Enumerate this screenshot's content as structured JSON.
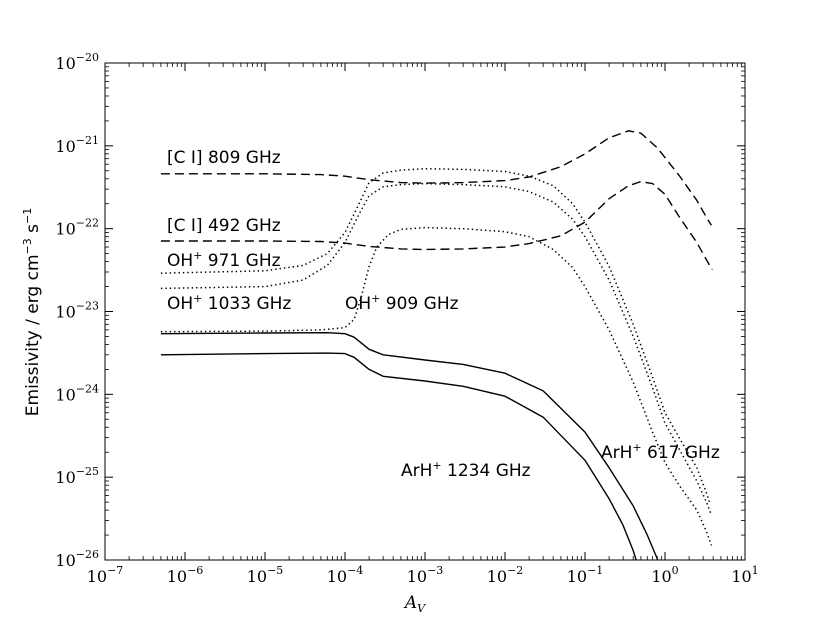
{
  "chart_data": {
    "type": "line",
    "title": "",
    "xlabel": "A",
    "xlabel_sub": "V",
    "ylabel": "Emissivity / erg cm",
    "ylabel_exp1": "−3",
    "ylabel_mid": " s",
    "ylabel_exp2": "−1",
    "xscale": "log",
    "yscale": "log",
    "xlim": [
      1e-07,
      10
    ],
    "ylim": [
      1e-26,
      1e-20
    ],
    "x_ticks": [
      {
        "base": "10",
        "exp": "−7",
        "value": 1e-07
      },
      {
        "base": "10",
        "exp": "−6",
        "value": 1e-06
      },
      {
        "base": "10",
        "exp": "−5",
        "value": 1e-05
      },
      {
        "base": "10",
        "exp": "−4",
        "value": 0.0001
      },
      {
        "base": "10",
        "exp": "−3",
        "value": 0.001
      },
      {
        "base": "10",
        "exp": "−2",
        "value": 0.01
      },
      {
        "base": "10",
        "exp": "−1",
        "value": 0.1
      },
      {
        "base": "10",
        "exp": "0",
        "value": 1
      },
      {
        "base": "10",
        "exp": "1",
        "value": 10
      }
    ],
    "y_ticks": [
      {
        "base": "10",
        "exp": "−26",
        "value": 1e-26
      },
      {
        "base": "10",
        "exp": "−25",
        "value": 1e-25
      },
      {
        "base": "10",
        "exp": "−24",
        "value": 1e-24
      },
      {
        "base": "10",
        "exp": "−23",
        "value": 1e-23
      },
      {
        "base": "10",
        "exp": "−22",
        "value": 1e-22
      },
      {
        "base": "10",
        "exp": "−21",
        "value": 1e-21
      },
      {
        "base": "10",
        "exp": "−20",
        "value": 1e-20
      }
    ],
    "series": [
      {
        "name": "CI 809 GHz",
        "style": "dashed",
        "points": [
          [
            5e-07,
            4.6e-22
          ],
          [
            1e-05,
            4.6e-22
          ],
          [
            5e-05,
            4.5e-22
          ],
          [
            0.0001,
            4.3e-22
          ],
          [
            0.0002,
            3.9e-22
          ],
          [
            0.0005,
            3.6e-22
          ],
          [
            0.001,
            3.55e-22
          ],
          [
            0.003,
            3.6e-22
          ],
          [
            0.01,
            3.8e-22
          ],
          [
            0.02,
            4.2e-22
          ],
          [
            0.05,
            5.6e-22
          ],
          [
            0.1,
            8e-22
          ],
          [
            0.2,
            1.25e-21
          ],
          [
            0.35,
            1.52e-21
          ],
          [
            0.5,
            1.42e-21
          ],
          [
            0.8,
            9.5e-22
          ],
          [
            1.5,
            4.4e-22
          ],
          [
            2.5,
            2.2e-22
          ],
          [
            3.4,
            1.3e-22
          ],
          [
            3.8,
            1.1e-22
          ]
        ]
      },
      {
        "name": "CI 492 GHz",
        "style": "dashed",
        "points": [
          [
            5e-07,
            7.1e-23
          ],
          [
            1e-05,
            7.1e-23
          ],
          [
            5e-05,
            7e-23
          ],
          [
            0.0001,
            6.7e-23
          ],
          [
            0.0002,
            6.1e-23
          ],
          [
            0.0005,
            5.7e-23
          ],
          [
            0.001,
            5.6e-23
          ],
          [
            0.003,
            5.7e-23
          ],
          [
            0.01,
            6e-23
          ],
          [
            0.02,
            6.6e-23
          ],
          [
            0.05,
            8.2e-23
          ],
          [
            0.1,
            1.2e-22
          ],
          [
            0.2,
            2.3e-22
          ],
          [
            0.35,
            3.3e-22
          ],
          [
            0.5,
            3.7e-22
          ],
          [
            0.7,
            3.5e-22
          ],
          [
            1.0,
            2.6e-22
          ],
          [
            1.5,
            1.4e-22
          ],
          [
            2.5,
            6.8e-23
          ],
          [
            3.4,
            4e-23
          ],
          [
            3.9,
            3.2e-23
          ]
        ]
      },
      {
        "name": "OH+ 971 GHz",
        "style": "dotted",
        "points": [
          [
            5e-07,
            2.9e-23
          ],
          [
            1e-05,
            3.1e-23
          ],
          [
            3e-05,
            3.6e-23
          ],
          [
            6e-05,
            5e-23
          ],
          [
            0.0001,
            9e-23
          ],
          [
            0.00015,
            2e-22
          ],
          [
            0.0002,
            3.6e-22
          ],
          [
            0.0003,
            4.7e-22
          ],
          [
            0.0005,
            5.1e-22
          ],
          [
            0.001,
            5.3e-22
          ],
          [
            0.003,
            5.2e-22
          ],
          [
            0.01,
            4.9e-22
          ],
          [
            0.02,
            4.3e-22
          ],
          [
            0.04,
            3.3e-22
          ],
          [
            0.07,
            2e-22
          ],
          [
            0.1,
            1.2e-22
          ],
          [
            0.2,
            3.5e-23
          ],
          [
            0.4,
            7e-24
          ],
          [
            0.7,
            1.6e-24
          ],
          [
            1.0,
            6e-25
          ],
          [
            1.5,
            3e-25
          ],
          [
            2.5,
            1.3e-25
          ],
          [
            3.2,
            7e-26
          ],
          [
            3.6,
            5e-26
          ]
        ]
      },
      {
        "name": "OH+ 1033 GHz",
        "style": "dotted",
        "points": [
          [
            5e-07,
            1.9e-23
          ],
          [
            1e-05,
            2e-23
          ],
          [
            3e-05,
            2.4e-23
          ],
          [
            6e-05,
            3.6e-23
          ],
          [
            0.0001,
            6.8e-23
          ],
          [
            0.00015,
            1.5e-22
          ],
          [
            0.0002,
            2.5e-22
          ],
          [
            0.0003,
            3.2e-22
          ],
          [
            0.0005,
            3.4e-22
          ],
          [
            0.001,
            3.5e-22
          ],
          [
            0.003,
            3.4e-22
          ],
          [
            0.01,
            3.2e-22
          ],
          [
            0.02,
            2.8e-22
          ],
          [
            0.04,
            2.1e-22
          ],
          [
            0.07,
            1.3e-22
          ],
          [
            0.1,
            8e-23
          ],
          [
            0.2,
            2.4e-23
          ],
          [
            0.4,
            5e-24
          ],
          [
            0.7,
            1.2e-24
          ],
          [
            1.0,
            4.5e-25
          ],
          [
            1.5,
            2.2e-25
          ],
          [
            2.5,
            9e-26
          ],
          [
            3.3,
            5e-26
          ],
          [
            3.8,
            3.5e-26
          ]
        ]
      },
      {
        "name": "OH+ 909 GHz",
        "style": "dotted",
        "points": [
          [
            5e-07,
            5.7e-24
          ],
          [
            1e-05,
            5.8e-24
          ],
          [
            5e-05,
            6e-24
          ],
          [
            0.0001,
            6.4e-24
          ],
          [
            0.00013,
            8e-24
          ],
          [
            0.00016,
            1.5e-23
          ],
          [
            0.0002,
            3.5e-23
          ],
          [
            0.00025,
            6e-23
          ],
          [
            0.00035,
            8.5e-23
          ],
          [
            0.0005,
            9.8e-23
          ],
          [
            0.001,
            1.03e-22
          ],
          [
            0.003,
            1e-22
          ],
          [
            0.01,
            9.2e-23
          ],
          [
            0.02,
            8e-23
          ],
          [
            0.04,
            5.6e-23
          ],
          [
            0.07,
            3.4e-23
          ],
          [
            0.1,
            2e-23
          ],
          [
            0.2,
            6e-24
          ],
          [
            0.4,
            1.4e-24
          ],
          [
            0.7,
            3.5e-25
          ],
          [
            1.0,
            1.5e-25
          ],
          [
            1.5,
            8e-26
          ],
          [
            2.5,
            4e-26
          ],
          [
            3.3,
            2.2e-26
          ],
          [
            3.8,
            1.5e-26
          ]
        ]
      },
      {
        "name": "ArH+ 617 GHz",
        "style": "solid",
        "points": [
          [
            5e-07,
            5.4e-24
          ],
          [
            1e-05,
            5.5e-24
          ],
          [
            6e-05,
            5.55e-24
          ],
          [
            0.0001,
            5.4e-24
          ],
          [
            0.00013,
            4.9e-24
          ],
          [
            0.0002,
            3.5e-24
          ],
          [
            0.0003,
            3e-24
          ],
          [
            0.001,
            2.6e-24
          ],
          [
            0.003,
            2.3e-24
          ],
          [
            0.01,
            1.8e-24
          ],
          [
            0.03,
            1.1e-24
          ],
          [
            0.1,
            3.5e-25
          ],
          [
            0.2,
            1.3e-25
          ],
          [
            0.4,
            4.5e-26
          ],
          [
            0.6,
            2e-26
          ],
          [
            0.75,
            1.2e-26
          ],
          [
            0.85,
            9e-27
          ]
        ]
      },
      {
        "name": "ArH+ 1234 GHz",
        "style": "solid",
        "points": [
          [
            5e-07,
            3e-24
          ],
          [
            1e-05,
            3.1e-24
          ],
          [
            6e-05,
            3.15e-24
          ],
          [
            0.0001,
            3.1e-24
          ],
          [
            0.00013,
            2.8e-24
          ],
          [
            0.0002,
            2e-24
          ],
          [
            0.0003,
            1.65e-24
          ],
          [
            0.001,
            1.45e-24
          ],
          [
            0.003,
            1.25e-24
          ],
          [
            0.01,
            9.5e-25
          ],
          [
            0.03,
            5.3e-25
          ],
          [
            0.1,
            1.6e-25
          ],
          [
            0.2,
            5.5e-26
          ],
          [
            0.3,
            2.6e-26
          ],
          [
            0.4,
            1.3e-26
          ],
          [
            0.45,
            9e-27
          ]
        ]
      }
    ],
    "annotations": [
      {
        "id": "ci809",
        "text_main": "[C I] 809 GHz",
        "sup": "",
        "text_tail": ""
      },
      {
        "id": "ci492",
        "text_main": "[C I] 492 GHz",
        "sup": "",
        "text_tail": ""
      },
      {
        "id": "oh971",
        "text_main": "OH",
        "sup": "+",
        "text_tail": " 971 GHz"
      },
      {
        "id": "oh1033",
        "text_main": "OH",
        "sup": "+",
        "text_tail": " 1033 GHz"
      },
      {
        "id": "oh909",
        "text_main": "OH",
        "sup": "+",
        "text_tail": " 909 GHz"
      },
      {
        "id": "arh617",
        "text_main": "ArH",
        "sup": "+",
        "text_tail": " 617 GHz"
      },
      {
        "id": "arh1234",
        "text_main": "ArH",
        "sup": "+",
        "text_tail": " 1234 GHz"
      }
    ]
  }
}
